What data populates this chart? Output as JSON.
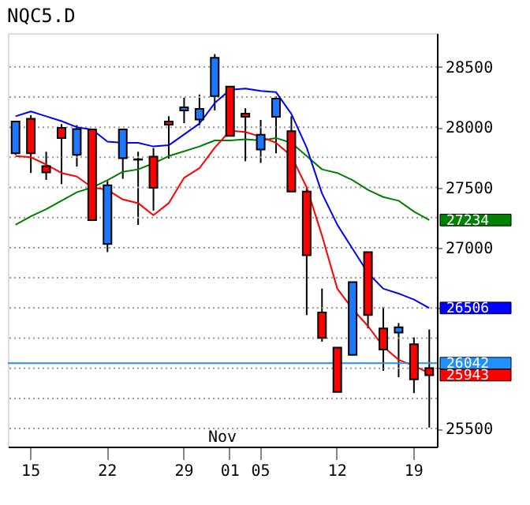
{
  "chart_data": {
    "type": "candlestick",
    "title": "NQC5.D",
    "categories": [
      null,
      "15",
      null,
      null,
      null,
      null,
      "22",
      null,
      null,
      null,
      null,
      "29",
      null,
      null,
      "01",
      null,
      "05",
      null,
      null,
      null,
      null,
      "12",
      null,
      null,
      null,
      null,
      "19",
      null
    ],
    "ohlc": [
      [
        27783,
        28047,
        27770,
        28047
      ],
      [
        28069,
        28100,
        27620,
        27783
      ],
      [
        27677,
        27796,
        27563,
        27624
      ],
      [
        27994,
        28025,
        27528,
        27910
      ],
      [
        27770,
        28016,
        27673,
        27985
      ],
      [
        27981,
        27981,
        27228,
        27228
      ],
      [
        27030,
        27554,
        26964,
        27519
      ],
      [
        27743,
        27981,
        27572,
        27981
      ],
      [
        27734,
        27796,
        27189,
        27730
      ],
      [
        27756,
        27827,
        27308,
        27497
      ],
      [
        28047,
        28091,
        27739,
        28020
      ],
      [
        28139,
        28245,
        28033,
        28165
      ],
      [
        28064,
        28271,
        28016,
        28152
      ],
      [
        28258,
        28606,
        28139,
        28575
      ],
      [
        28337,
        28337,
        27928,
        27928
      ],
      [
        28113,
        28157,
        27717,
        28086
      ],
      [
        27814,
        28060,
        27704,
        27937
      ],
      [
        28086,
        28254,
        27783,
        28236
      ],
      [
        27967,
        28091,
        27466,
        27466
      ],
      [
        27466,
        27497,
        26441,
        26938
      ],
      [
        26463,
        26661,
        26221,
        26252
      ],
      [
        26172,
        26172,
        25803,
        25803
      ],
      [
        26111,
        26714,
        26111,
        26714
      ],
      [
        26964,
        26964,
        26331,
        26441
      ],
      [
        26331,
        26507,
        25979,
        26155
      ],
      [
        26296,
        26375,
        25926,
        26340
      ],
      [
        26199,
        26256,
        25794,
        25908
      ],
      [
        26001,
        26322,
        25508,
        25943
      ]
    ],
    "colors": [
      "#1e78ff",
      "#ff0000",
      "#ff0000",
      "#ff0000",
      "#1e78ff",
      "#ff0000",
      "#1e78ff",
      "#1e78ff",
      "#ff0000",
      "#ff0000",
      "#ff0000",
      "#1e78ff",
      "#1e78ff",
      "#1e78ff",
      "#ff0000",
      "#ff0000",
      "#1e78ff",
      "#1e78ff",
      "#ff0000",
      "#ff0000",
      "#ff0000",
      "#ff0000",
      "#1e78ff",
      "#ff0000",
      "#ff0000",
      "#1e78ff",
      "#ff0000",
      "#ff0000"
    ],
    "series": [
      {
        "type": "line",
        "color": "#008000",
        "values": [
          27190,
          27260,
          27320,
          27390,
          27460,
          27500,
          27560,
          27630,
          27650,
          27700,
          27760,
          27800,
          27840,
          27890,
          27890,
          27900,
          27890,
          27910,
          27870,
          27760,
          27650,
          27620,
          27560,
          27480,
          27420,
          27390,
          27300,
          27230
        ]
      },
      {
        "type": "line",
        "color": "#0000ff",
        "values": [
          28090,
          28130,
          28090,
          28050,
          28000,
          27980,
          27880,
          27870,
          27870,
          27840,
          27850,
          27940,
          28030,
          28200,
          28310,
          28320,
          28300,
          28290,
          28110,
          27830,
          27450,
          27190,
          26990,
          26790,
          26660,
          26620,
          26570,
          26500
        ]
      },
      {
        "type": "line",
        "color": "#ff0000",
        "values": [
          27760,
          27750,
          27690,
          27620,
          27590,
          27500,
          27480,
          27400,
          27370,
          27270,
          27370,
          27580,
          27660,
          27830,
          27970,
          27960,
          27920,
          27870,
          27760,
          27500,
          27100,
          26660,
          26490,
          26350,
          26180,
          26070,
          26020,
          25960
        ]
      }
    ],
    "ylim": [
      25350,
      28780
    ],
    "yticks": [
      25500,
      {
        "value": 25750,
        "label": null
      },
      {
        "value": 26000,
        "label": null
      },
      {
        "value": 26250,
        "label": null
      },
      {
        "value": 26500,
        "label": null
      },
      {
        "value": 26750,
        "label": null
      },
      27000,
      {
        "value": 27250,
        "label": null
      },
      27500,
      {
        "value": 27750,
        "label": null
      },
      28000,
      {
        "value": 28250,
        "label": null
      },
      28500
    ],
    "grid": "y",
    "ref_lines": [
      {
        "axis": "y",
        "value": 26042,
        "label": "26042",
        "color": "#1e90ff"
      }
    ],
    "annotations": [
      "27234",
      "26506",
      "25943",
      "Nov"
    ]
  }
}
